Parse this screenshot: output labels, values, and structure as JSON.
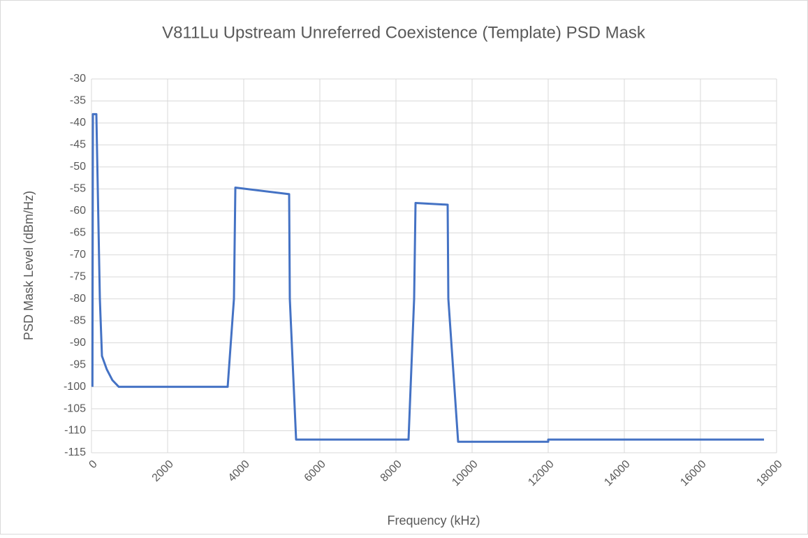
{
  "chart_data": {
    "type": "line",
    "title": "V811Lu Upstream Unreferred Coexistence (Template) PSD Mask",
    "x_label": "Frequency (kHz)",
    "y_label": "PSD Mask Level (dBm/Hz)",
    "x": [
      25,
      37,
      128,
      220,
      275,
      400,
      550,
      716,
      3578,
      3743,
      3780,
      5193,
      5211,
      5376,
      8330,
      8477,
      8514,
      9358,
      9376,
      9633,
      12000,
      12000,
      17670
    ],
    "series": [
      {
        "name": "PSD Mask",
        "color": "#4472c4",
        "values": [
          -100,
          -38,
          -38,
          -80,
          -93,
          -96,
          -98.5,
          -100,
          -100,
          -80,
          -54.7,
          -56.2,
          -80,
          -112,
          -112,
          -80,
          -58.2,
          -58.6,
          -80,
          -112.5,
          -112.5,
          -112,
          -112
        ]
      }
    ],
    "xlim": [
      0,
      18000
    ],
    "xticks": [
      0,
      2000,
      4000,
      6000,
      8000,
      10000,
      12000,
      14000,
      16000,
      18000
    ],
    "ylim": [
      -115,
      -30
    ],
    "yticks": [
      -30,
      -35,
      -40,
      -45,
      -50,
      -55,
      -60,
      -65,
      -70,
      -75,
      -80,
      -85,
      -90,
      -95,
      -100,
      -105,
      -110,
      -115
    ],
    "grid": true
  }
}
